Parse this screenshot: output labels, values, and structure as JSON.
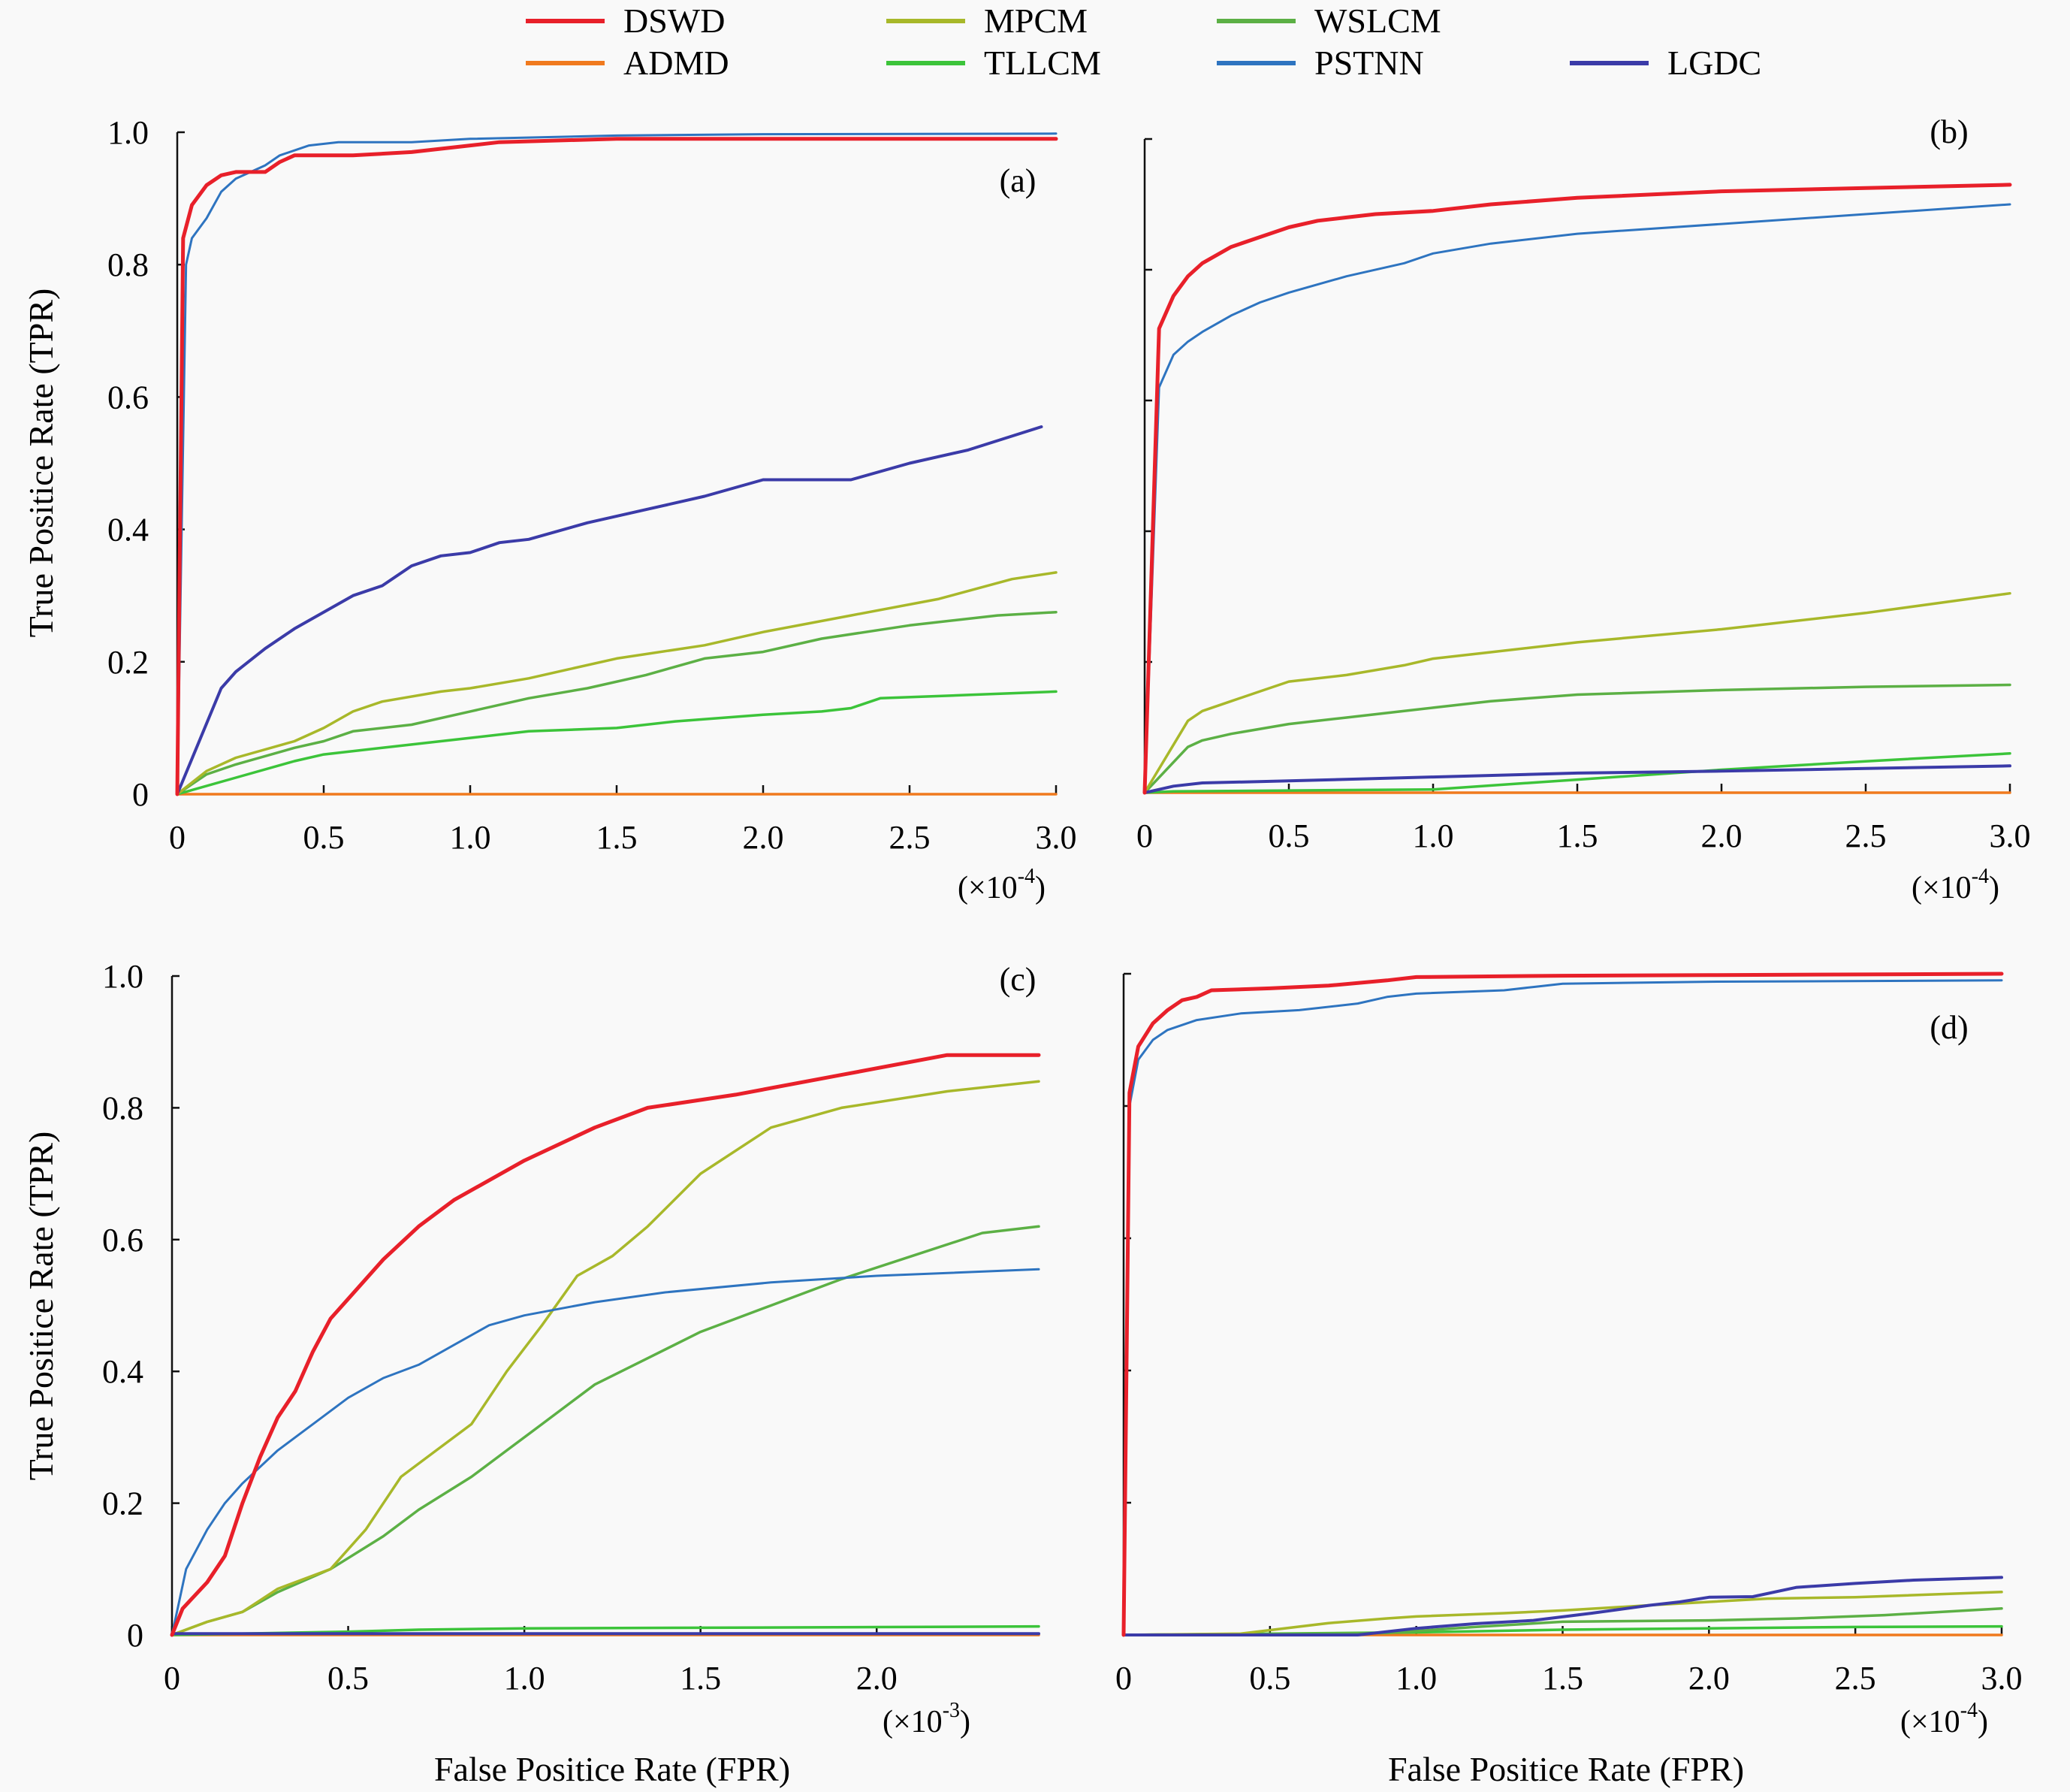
{
  "legend": [
    {
      "name": "DSWD",
      "color": "#e8202a",
      "width": 5
    },
    {
      "name": "MPCM",
      "color": "#a8b82a",
      "width": 3.5
    },
    {
      "name": "WSLCM",
      "color": "#5cb045",
      "width": 3.5
    },
    {
      "name": "ADMD",
      "color": "#f07a1e",
      "width": 3.5
    },
    {
      "name": "TLLCM",
      "color": "#3cc43a",
      "width": 3.5
    },
    {
      "name": "PSTNN",
      "color": "#2e74c0",
      "width": 3
    },
    {
      "name": "LGDC",
      "color": "#3b3ba8",
      "width": 4
    }
  ],
  "shared": {
    "ylabel": "True Positice Rate (TPR)",
    "xlabel": "False Positice Rate (FPR)"
  },
  "chart_data": [
    {
      "type": "line",
      "panel": "(a)",
      "xlabel": "",
      "ylabel": "True Positice Rate (TPR)",
      "x_multiplier": "(×10",
      "x_multiplier_exp": "-4",
      "xlim": [
        0,
        3.0
      ],
      "ylim": [
        0,
        1.0
      ],
      "xticks": [
        "0",
        "0.5",
        "1.0",
        "1.5",
        "2.0",
        "2.5",
        "3.0"
      ],
      "xtick_values": [
        0,
        0.5,
        1.0,
        1.5,
        2.0,
        2.5,
        3.0
      ],
      "yticks": [
        "0",
        "0.2",
        "0.4",
        "0.6",
        "0.8",
        "1.0"
      ],
      "ytick_values": [
        0,
        0.2,
        0.4,
        0.6,
        0.8,
        1.0
      ],
      "show_ytick_labels": true,
      "grid": false,
      "series": [
        {
          "name": "DSWD",
          "x": [
            0,
            0.02,
            0.05,
            0.1,
            0.15,
            0.2,
            0.3,
            0.35,
            0.4,
            0.6,
            0.8,
            1.0,
            1.1,
            1.5,
            2.0,
            3.0
          ],
          "y": [
            0,
            0.84,
            0.89,
            0.92,
            0.935,
            0.94,
            0.94,
            0.955,
            0.965,
            0.965,
            0.97,
            0.98,
            0.985,
            0.99,
            0.99,
            0.99
          ]
        },
        {
          "name": "PSTNN",
          "x": [
            0,
            0.03,
            0.05,
            0.1,
            0.15,
            0.2,
            0.3,
            0.35,
            0.45,
            0.55,
            0.8,
            1.0,
            1.5,
            2.0,
            3.0
          ],
          "y": [
            0,
            0.8,
            0.84,
            0.87,
            0.91,
            0.93,
            0.95,
            0.965,
            0.98,
            0.985,
            0.985,
            0.99,
            0.995,
            0.997,
            0.998
          ]
        },
        {
          "name": "LGDC",
          "x": [
            0,
            0.15,
            0.2,
            0.3,
            0.4,
            0.5,
            0.6,
            0.7,
            0.8,
            0.9,
            1.0,
            1.1,
            1.2,
            1.4,
            1.6,
            1.8,
            2.0,
            2.3,
            2.5,
            2.7,
            2.95
          ],
          "y": [
            0,
            0.16,
            0.185,
            0.22,
            0.25,
            0.275,
            0.3,
            0.315,
            0.345,
            0.36,
            0.365,
            0.38,
            0.385,
            0.41,
            0.43,
            0.45,
            0.475,
            0.475,
            0.5,
            0.52,
            0.555
          ]
        },
        {
          "name": "MPCM",
          "x": [
            0,
            0.1,
            0.2,
            0.4,
            0.5,
            0.6,
            0.7,
            0.9,
            1.0,
            1.2,
            1.5,
            1.8,
            2.0,
            2.3,
            2.6,
            2.85,
            3.0
          ],
          "y": [
            0,
            0.035,
            0.055,
            0.08,
            0.1,
            0.125,
            0.14,
            0.155,
            0.16,
            0.175,
            0.205,
            0.225,
            0.245,
            0.27,
            0.295,
            0.325,
            0.335
          ]
        },
        {
          "name": "WSLCM",
          "x": [
            0,
            0.1,
            0.2,
            0.4,
            0.5,
            0.6,
            0.8,
            1.0,
            1.2,
            1.4,
            1.6,
            1.8,
            2.0,
            2.2,
            2.5,
            2.8,
            3.0
          ],
          "y": [
            0,
            0.03,
            0.045,
            0.07,
            0.08,
            0.095,
            0.105,
            0.125,
            0.145,
            0.16,
            0.18,
            0.205,
            0.215,
            0.235,
            0.255,
            0.27,
            0.275
          ]
        },
        {
          "name": "TLLCM",
          "x": [
            0,
            0.2,
            0.4,
            0.5,
            0.7,
            0.9,
            1.0,
            1.2,
            1.5,
            1.7,
            2.0,
            2.2,
            2.3,
            2.4,
            2.7,
            3.0
          ],
          "y": [
            0,
            0.025,
            0.05,
            0.06,
            0.07,
            0.08,
            0.085,
            0.095,
            0.1,
            0.11,
            0.12,
            0.125,
            0.13,
            0.145,
            0.15,
            0.155
          ]
        },
        {
          "name": "ADMD",
          "x": [
            0,
            3.0
          ],
          "y": [
            0,
            0
          ]
        }
      ]
    },
    {
      "type": "line",
      "panel": "(b)",
      "xlabel": "",
      "ylabel": "",
      "x_multiplier": "(×10",
      "x_multiplier_exp": "-4",
      "xlim": [
        0,
        3.0
      ],
      "ylim": [
        0,
        1.0
      ],
      "xticks": [
        "0",
        "0.5",
        "1.0",
        "1.5",
        "2.0",
        "2.5",
        "3.0"
      ],
      "xtick_values": [
        0,
        0.5,
        1.0,
        1.5,
        2.0,
        2.5,
        3.0
      ],
      "yticks": [],
      "ytick_values": [
        0,
        0.2,
        0.4,
        0.6,
        0.8,
        1.0
      ],
      "show_ytick_labels": false,
      "grid": false,
      "series": [
        {
          "name": "DSWD",
          "x": [
            0,
            0.05,
            0.1,
            0.15,
            0.2,
            0.3,
            0.4,
            0.5,
            0.6,
            0.7,
            0.8,
            1.0,
            1.2,
            1.5,
            2.0,
            2.5,
            3.0
          ],
          "y": [
            0,
            0.71,
            0.76,
            0.79,
            0.81,
            0.835,
            0.85,
            0.865,
            0.875,
            0.88,
            0.885,
            0.89,
            0.9,
            0.91,
            0.92,
            0.925,
            0.93
          ]
        },
        {
          "name": "PSTNN",
          "x": [
            0,
            0.05,
            0.1,
            0.15,
            0.2,
            0.3,
            0.4,
            0.5,
            0.7,
            0.9,
            1.0,
            1.2,
            1.5,
            2.0,
            2.5,
            3.0
          ],
          "y": [
            0,
            0.62,
            0.67,
            0.69,
            0.705,
            0.73,
            0.75,
            0.765,
            0.79,
            0.81,
            0.825,
            0.84,
            0.855,
            0.87,
            0.885,
            0.9
          ]
        },
        {
          "name": "MPCM",
          "x": [
            0,
            0.15,
            0.2,
            0.3,
            0.4,
            0.5,
            0.7,
            0.9,
            1.0,
            1.2,
            1.5,
            2.0,
            2.5,
            3.0
          ],
          "y": [
            0,
            0.11,
            0.125,
            0.14,
            0.155,
            0.17,
            0.18,
            0.195,
            0.205,
            0.215,
            0.23,
            0.25,
            0.275,
            0.305
          ]
        },
        {
          "name": "WSLCM",
          "x": [
            0,
            0.15,
            0.2,
            0.3,
            0.5,
            0.7,
            0.9,
            1.0,
            1.2,
            1.5,
            2.0,
            2.5,
            3.0
          ],
          "y": [
            0,
            0.07,
            0.08,
            0.09,
            0.105,
            0.115,
            0.125,
            0.13,
            0.14,
            0.15,
            0.157,
            0.162,
            0.165
          ]
        },
        {
          "name": "TLLCM",
          "x": [
            0,
            0.1,
            1.0,
            1.5,
            2.0,
            2.5,
            3.0
          ],
          "y": [
            0,
            0.002,
            0.005,
            0.02,
            0.035,
            0.048,
            0.06
          ]
        },
        {
          "name": "LGDC",
          "x": [
            0,
            0.1,
            0.2,
            0.5,
            1.0,
            1.5,
            2.0,
            2.5,
            3.0
          ],
          "y": [
            0,
            0.01,
            0.015,
            0.018,
            0.024,
            0.03,
            0.033,
            0.037,
            0.041
          ]
        },
        {
          "name": "ADMD",
          "x": [
            0,
            3.0
          ],
          "y": [
            0,
            0
          ]
        }
      ]
    },
    {
      "type": "line",
      "panel": "(c)",
      "xlabel": "False Positice Rate (FPR)",
      "ylabel": "True Positice Rate (TPR)",
      "x_multiplier": "(×10",
      "x_multiplier_exp": "-3",
      "xlim": [
        0,
        2.46
      ],
      "ylim": [
        0,
        1.0
      ],
      "xticks": [
        "0",
        "0.5",
        "1.0",
        "1.5",
        "2.0"
      ],
      "xtick_values": [
        0,
        0.5,
        1.0,
        1.5,
        2.0
      ],
      "yticks": [
        "0",
        "0.2",
        "0.4",
        "0.6",
        "0.8",
        "1.0"
      ],
      "ytick_values": [
        0,
        0.2,
        0.4,
        0.6,
        0.8,
        1.0
      ],
      "show_ytick_labels": true,
      "grid": false,
      "series": [
        {
          "name": "DSWD",
          "x": [
            0,
            0.03,
            0.1,
            0.15,
            0.2,
            0.25,
            0.3,
            0.35,
            0.4,
            0.45,
            0.5,
            0.6,
            0.7,
            0.8,
            1.0,
            1.2,
            1.35,
            1.6,
            1.9,
            2.2,
            2.46
          ],
          "y": [
            0,
            0.04,
            0.08,
            0.12,
            0.2,
            0.27,
            0.33,
            0.37,
            0.43,
            0.48,
            0.51,
            0.57,
            0.62,
            0.66,
            0.72,
            0.77,
            0.8,
            0.82,
            0.85,
            0.88,
            0.88
          ]
        },
        {
          "name": "PSTNN",
          "x": [
            0,
            0.04,
            0.1,
            0.15,
            0.2,
            0.3,
            0.4,
            0.5,
            0.6,
            0.7,
            0.8,
            0.9,
            1.0,
            1.2,
            1.4,
            1.7,
            2.0,
            2.46
          ],
          "y": [
            0,
            0.1,
            0.16,
            0.2,
            0.23,
            0.28,
            0.32,
            0.36,
            0.39,
            0.41,
            0.44,
            0.47,
            0.485,
            0.505,
            0.52,
            0.535,
            0.545,
            0.555
          ]
        },
        {
          "name": "MPCM",
          "x": [
            0,
            0.1,
            0.2,
            0.3,
            0.45,
            0.55,
            0.65,
            0.75,
            0.85,
            0.95,
            1.05,
            1.15,
            1.25,
            1.35,
            1.5,
            1.7,
            1.9,
            2.2,
            2.46
          ],
          "y": [
            0,
            0.02,
            0.035,
            0.07,
            0.1,
            0.16,
            0.24,
            0.28,
            0.32,
            0.4,
            0.47,
            0.545,
            0.575,
            0.62,
            0.7,
            0.77,
            0.8,
            0.825,
            0.84
          ]
        },
        {
          "name": "WSLCM",
          "x": [
            0,
            0.1,
            0.2,
            0.3,
            0.45,
            0.6,
            0.7,
            0.85,
            0.95,
            1.05,
            1.2,
            1.35,
            1.5,
            1.7,
            1.9,
            2.1,
            2.3,
            2.46
          ],
          "y": [
            0,
            0.02,
            0.035,
            0.065,
            0.1,
            0.15,
            0.19,
            0.24,
            0.28,
            0.32,
            0.38,
            0.42,
            0.46,
            0.5,
            0.54,
            0.575,
            0.61,
            0.62
          ]
        },
        {
          "name": "TLLCM",
          "x": [
            0,
            0.5,
            0.7,
            1.0,
            1.5,
            2.0,
            2.46
          ],
          "y": [
            0,
            0.005,
            0.008,
            0.01,
            0.011,
            0.012,
            0.013
          ]
        },
        {
          "name": "LGDC",
          "x": [
            0,
            2.46
          ],
          "y": [
            0.002,
            0.002
          ]
        },
        {
          "name": "ADMD",
          "x": [
            0,
            2.46
          ],
          "y": [
            0,
            0
          ]
        }
      ]
    },
    {
      "type": "line",
      "panel": "(d)",
      "xlabel": "False Positice Rate (FPR)",
      "ylabel": "",
      "x_multiplier": "(×10",
      "x_multiplier_exp": "-4",
      "xlim": [
        0,
        3.0
      ],
      "ylim": [
        0,
        1.0
      ],
      "xticks": [
        "0",
        "0.5",
        "1.0",
        "1.5",
        "2.0",
        "2.5",
        "3.0"
      ],
      "xtick_values": [
        0,
        0.5,
        1.0,
        1.5,
        2.0,
        2.5,
        3.0
      ],
      "yticks": [],
      "ytick_values": [
        0,
        0.2,
        0.4,
        0.6,
        0.8,
        1.0
      ],
      "show_ytick_labels": false,
      "grid": false,
      "series": [
        {
          "name": "DSWD",
          "x": [
            0,
            0.02,
            0.05,
            0.1,
            0.15,
            0.2,
            0.25,
            0.3,
            0.5,
            0.7,
            0.9,
            1.0,
            1.5,
            2.0,
            3.0
          ],
          "y": [
            0,
            0.82,
            0.89,
            0.925,
            0.945,
            0.96,
            0.965,
            0.975,
            0.978,
            0.982,
            0.99,
            0.995,
            0.997,
            0.998,
            1.0
          ]
        },
        {
          "name": "PSTNN",
          "x": [
            0,
            0.02,
            0.05,
            0.1,
            0.15,
            0.25,
            0.4,
            0.6,
            0.8,
            0.9,
            1.0,
            1.3,
            1.4,
            1.5,
            2.0,
            3.0
          ],
          "y": [
            0,
            0.8,
            0.87,
            0.9,
            0.915,
            0.93,
            0.94,
            0.945,
            0.955,
            0.965,
            0.97,
            0.975,
            0.98,
            0.985,
            0.988,
            0.99
          ]
        },
        {
          "name": "LGDC",
          "x": [
            0,
            0.8,
            1.0,
            1.2,
            1.4,
            1.6,
            1.8,
            1.9,
            2.0,
            2.15,
            2.3,
            2.5,
            2.7,
            3.0
          ],
          "y": [
            0,
            0,
            0.01,
            0.017,
            0.022,
            0.033,
            0.045,
            0.05,
            0.057,
            0.058,
            0.072,
            0.078,
            0.083,
            0.087
          ]
        },
        {
          "name": "MPCM",
          "x": [
            0,
            0.4,
            0.7,
            0.9,
            1.0,
            1.3,
            1.5,
            1.8,
            2.0,
            2.2,
            2.5,
            3.0
          ],
          "y": [
            0,
            0.002,
            0.018,
            0.025,
            0.028,
            0.033,
            0.037,
            0.045,
            0.05,
            0.055,
            0.057,
            0.065
          ]
        },
        {
          "name": "WSLCM",
          "x": [
            0,
            0.9,
            1.2,
            1.5,
            2.0,
            2.3,
            2.6,
            3.0
          ],
          "y": [
            0,
            0.003,
            0.012,
            0.02,
            0.022,
            0.025,
            0.03,
            0.04
          ]
        },
        {
          "name": "TLLCM",
          "x": [
            0,
            1.0,
            1.5,
            2.0,
            2.5,
            3.0
          ],
          "y": [
            0,
            0.004,
            0.008,
            0.01,
            0.012,
            0.013
          ]
        },
        {
          "name": "ADMD",
          "x": [
            0,
            3.0
          ],
          "y": [
            0,
            0
          ]
        }
      ]
    }
  ]
}
